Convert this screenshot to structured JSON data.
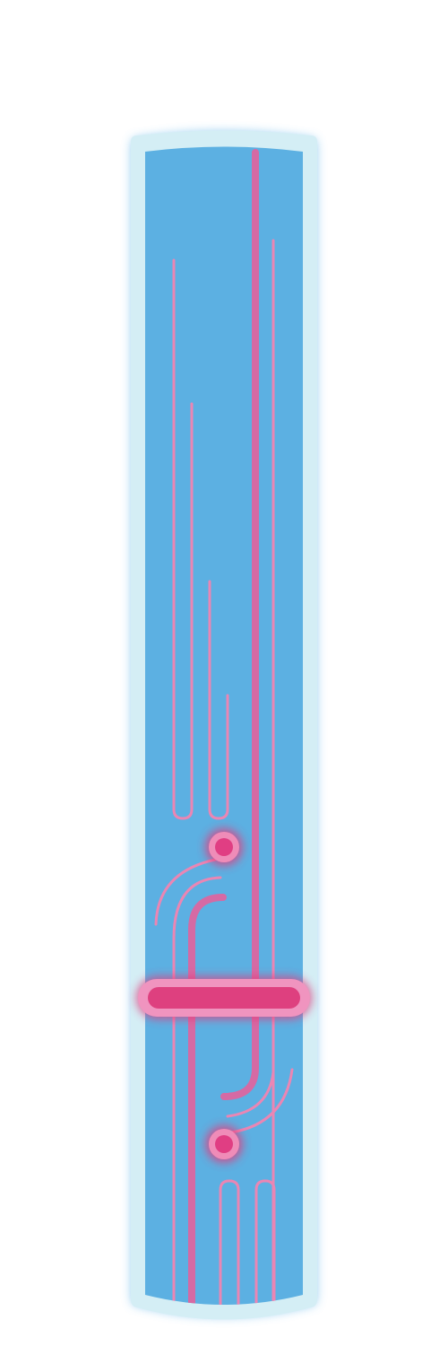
{
  "artwork": {
    "subject": "neon-tube-panel",
    "colors": {
      "page_background": "#ffffff",
      "glow": "#62b4ea",
      "frame": "#d4eef5",
      "panel": "#5cb0e2",
      "line_light": "#ea86b4",
      "line_mid": "#d56aa4",
      "node_fill": "#e03e83",
      "node_ring": "#ef8cb8",
      "bar_fill": "#de407f",
      "bar_ring": "#f094bf",
      "node_glow": "#e23d7e"
    }
  }
}
